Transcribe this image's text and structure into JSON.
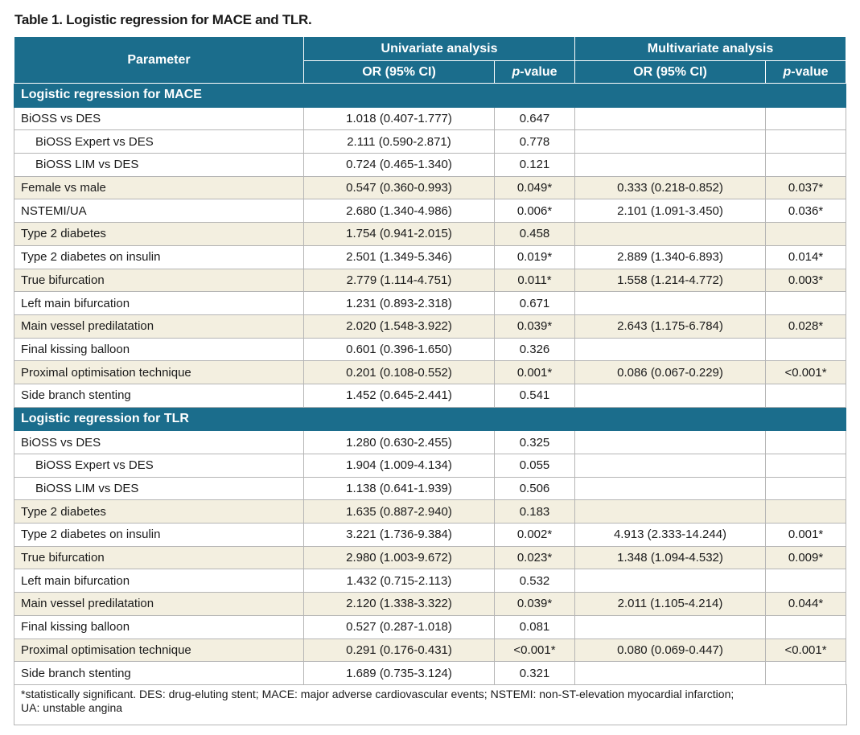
{
  "title": "Table 1. Logistic regression for MACE and TLR.",
  "table": {
    "header": {
      "parameter": "Parameter",
      "univariate": "Univariate analysis",
      "multivariate": "Multivariate analysis",
      "sub": [
        "OR (95% CI)",
        "p-value",
        "OR (95% CI)",
        "p-value"
      ]
    },
    "sections": [
      {
        "title": "Logistic regression for MACE",
        "rows": [
          {
            "cells": [
              "BiOSS vs DES",
              "1.018 (0.407-1.777)",
              "0.647",
              null,
              null
            ]
          },
          {
            "cells": [
              "BiOSS Expert vs DES",
              "2.111 (0.590-2.871)",
              "0.778",
              null,
              null
            ],
            "indent": true
          },
          {
            "cells": [
              "BiOSS LIM vs DES",
              "0.724 (0.465-1.340)",
              "0.121",
              null,
              null
            ],
            "indent": true
          },
          {
            "cells": [
              "Female vs male",
              "0.547 (0.360-0.993)",
              "0.049*",
              "0.333 (0.218-0.852)",
              "0.037*"
            ],
            "shaded": true
          },
          {
            "cells": [
              "NSTEMI/UA",
              "2.680 (1.340-4.986)",
              "0.006*",
              "2.101 (1.091-3.450)",
              "0.036*"
            ]
          },
          {
            "cells": [
              "Type 2 diabetes",
              "1.754 (0.941-2.015)",
              "0.458",
              null,
              null
            ],
            "shaded": true
          },
          {
            "cells": [
              "Type 2 diabetes on insulin",
              "2.501 (1.349-5.346)",
              "0.019*",
              "2.889 (1.340-6.893)",
              "0.014*"
            ]
          },
          {
            "cells": [
              "True bifurcation",
              "2.779 (1.114-4.751)",
              "0.011*",
              "1.558 (1.214-4.772)",
              "0.003*"
            ],
            "shaded": true
          },
          {
            "cells": [
              "Left main bifurcation",
              "1.231 (0.893-2.318)",
              "0.671",
              null,
              null
            ]
          },
          {
            "cells": [
              "Main vessel predilatation",
              "2.020 (1.548-3.922)",
              "0.039*",
              "2.643 (1.175-6.784)",
              "0.028*"
            ],
            "shaded": true
          },
          {
            "cells": [
              "Final kissing balloon",
              "0.601 (0.396-1.650)",
              "0.326",
              null,
              null
            ]
          },
          {
            "cells": [
              "Proximal optimisation technique",
              "0.201 (0.108-0.552)",
              "0.001*",
              "0.086 (0.067-0.229)",
              "<0.001*"
            ],
            "shaded": true
          },
          {
            "cells": [
              "Side branch stenting",
              "1.452 (0.645-2.441)",
              "0.541",
              null,
              null
            ]
          }
        ]
      },
      {
        "title": "Logistic regression for TLR",
        "rows": [
          {
            "cells": [
              "BiOSS vs DES",
              "1.280 (0.630-2.455)",
              "0.325",
              null,
              null
            ]
          },
          {
            "cells": [
              "BiOSS Expert vs DES",
              "1.904 (1.009-4.134)",
              "0.055",
              null,
              null
            ],
            "indent": true
          },
          {
            "cells": [
              "BiOSS LIM vs DES",
              "1.138 (0.641-1.939)",
              "0.506",
              null,
              null
            ],
            "indent": true
          },
          {
            "cells": [
              "Type 2 diabetes",
              "1.635 (0.887-2.940)",
              "0.183",
              null,
              null
            ],
            "shaded": true
          },
          {
            "cells": [
              "Type 2 diabetes on insulin",
              "3.221 (1.736-9.384)",
              "0.002*",
              "4.913 (2.333-14.244)",
              "0.001*"
            ]
          },
          {
            "cells": [
              "True bifurcation",
              "2.980 (1.003-9.672)",
              "0.023*",
              "1.348 (1.094-4.532)",
              "0.009*"
            ],
            "shaded": true
          },
          {
            "cells": [
              "Left main bifurcation",
              "1.432 (0.715-2.113)",
              "0.532",
              null,
              null
            ]
          },
          {
            "cells": [
              "Main vessel predilatation",
              "2.120 (1.338-3.322)",
              "0.039*",
              "2.011 (1.105-4.214)",
              "0.044*"
            ],
            "shaded": true
          },
          {
            "cells": [
              "Final kissing balloon",
              "0.527 (0.287-1.018)",
              "0.081",
              null,
              null
            ]
          },
          {
            "cells": [
              "Proximal optimisation technique",
              "0.291 (0.176-0.431)",
              "<0.001*",
              "0.080 (0.069-0.447)",
              "<0.001*"
            ],
            "shaded": true
          },
          {
            "cells": [
              "Side branch stenting",
              "1.689 (0.735-3.124)",
              "0.321",
              null,
              null
            ]
          }
        ]
      }
    ]
  },
  "footnote": [
    "*statistically significant. DES: drug-eluting stent; MACE: major adverse cardiovascular events; NSTEMI: non-ST-elevation myocardial infarction;",
    "UA: unstable angina"
  ]
}
